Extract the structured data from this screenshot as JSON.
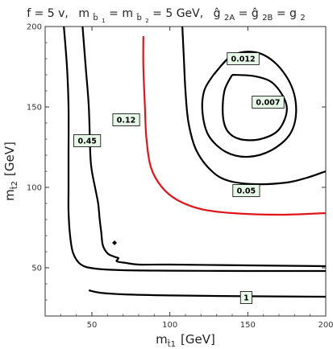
{
  "title": {
    "f_part": "f = 5 v,",
    "m_part": "m",
    "m_sub1": "b̂",
    "m_subsub1": "1",
    "m_eq": " = m",
    "m_sub2": "b̂",
    "m_subsub2": "2",
    "m_tail": " = 5 GeV,",
    "g_part": "ĝ",
    "g_sub1": "2A",
    "g_eq": " = ĝ",
    "g_sub2": "2B",
    "g_tail": " = g",
    "g_sub3": "2"
  },
  "chart_data": {
    "type": "contour",
    "xlabel": "m",
    "xlabel_sub": "t̂1",
    "xlabel_unit": "[GeV]",
    "ylabel": "m",
    "ylabel_sub": "t̂2",
    "ylabel_unit": "[GeV]",
    "xlim": [
      20,
      200
    ],
    "ylim": [
      20,
      200
    ],
    "xticks": [
      50,
      100,
      150,
      200
    ],
    "yticks": [
      50,
      100,
      150,
      200
    ],
    "contours": [
      {
        "label": "1",
        "color": "#000000",
        "label_at": [
          149,
          31.5
        ],
        "segments": [
          [
            [
              48,
              36
            ],
            [
              55,
              34.5
            ],
            [
              70,
              33.5
            ],
            [
              100,
              32.8
            ],
            [
              150,
              32.3
            ],
            [
              200,
              32
            ]
          ]
        ]
      },
      {
        "label": "0.45",
        "color": "#000000",
        "label_at": [
          47,
          129
        ],
        "segments": [
          [
            [
              32,
              200
            ],
            [
              34,
              175
            ],
            [
              35,
              150
            ],
            [
              35,
              120
            ],
            [
              35,
              100
            ],
            [
              35,
              85
            ],
            [
              36,
              70
            ],
            [
              38,
              59
            ],
            [
              43,
              52
            ],
            [
              52,
              49.5
            ],
            [
              70,
              48.5
            ],
            [
              100,
              48.2
            ],
            [
              150,
              48
            ],
            [
              200,
              48
            ]
          ],
          [
            [
              44,
              200
            ],
            [
              46,
              175
            ],
            [
              48,
              150
            ],
            [
              49,
              120
            ],
            [
              50,
              110
            ],
            [
              52,
              100
            ],
            [
              54,
              90
            ],
            [
              55,
              80
            ],
            [
              56,
              72
            ],
            [
              57,
              64
            ],
            [
              60,
              59
            ],
            [
              64,
              57
            ],
            [
              67,
              56
            ],
            [
              66,
              54
            ],
            [
              72,
              53
            ],
            [
              80,
              52
            ],
            [
              100,
              52
            ],
            [
              150,
              51.5
            ],
            [
              200,
              51
            ]
          ]
        ]
      },
      {
        "label": "0.12",
        "color": "#e0141a",
        "label_at": [
          72,
          142
        ],
        "segments": [
          [
            [
              83,
              194
            ],
            [
              83,
              175
            ],
            [
              84,
              150
            ],
            [
              85,
              130
            ],
            [
              88,
              112
            ],
            [
              95,
              100
            ],
            [
              105,
              92
            ],
            [
              120,
              86.5
            ],
            [
              140,
              84
            ],
            [
              170,
              83
            ],
            [
              200,
              84
            ]
          ]
        ]
      },
      {
        "label": "0.05",
        "color": "#000000",
        "label_at": [
          149,
          98
        ],
        "segments": [
          [
            [
              108,
              200
            ],
            [
              109,
              180
            ],
            [
              110,
              160
            ],
            [
              112,
              140
            ],
            [
              117,
              123
            ],
            [
              127,
              110
            ],
            [
              138,
              104
            ],
            [
              155,
              102
            ],
            [
              175,
              103
            ],
            [
              188,
              106
            ],
            [
              200,
              110
            ]
          ]
        ]
      },
      {
        "label": "0.012",
        "color": "#000000",
        "label_at": [
          147,
          180
        ],
        "segments": [
          [
            [
              128,
              170
            ],
            [
              140,
              182
            ],
            [
              155,
              184
            ],
            [
              168,
              177
            ],
            [
              178,
              163
            ],
            [
              181,
              147
            ],
            [
              177,
              133
            ],
            [
              165,
              123
            ],
            [
              150,
              119
            ],
            [
              136,
              122
            ],
            [
              125,
              132
            ],
            [
              121,
              146
            ],
            [
              122,
              160
            ],
            [
              128,
              170
            ]
          ]
        ]
      },
      {
        "label": "0.007",
        "color": "#000000",
        "label_at": [
          163,
          153
        ],
        "segments": [
          [
            [
              140,
              170
            ],
            [
              155,
              169
            ],
            [
              167,
              164
            ],
            [
              175,
              150
            ],
            [
              170,
              136
            ],
            [
              158,
              130
            ],
            [
              145,
              130
            ],
            [
              137,
              135
            ],
            [
              134,
              145
            ],
            [
              135,
              160
            ],
            [
              140,
              170
            ]
          ]
        ]
      }
    ]
  }
}
